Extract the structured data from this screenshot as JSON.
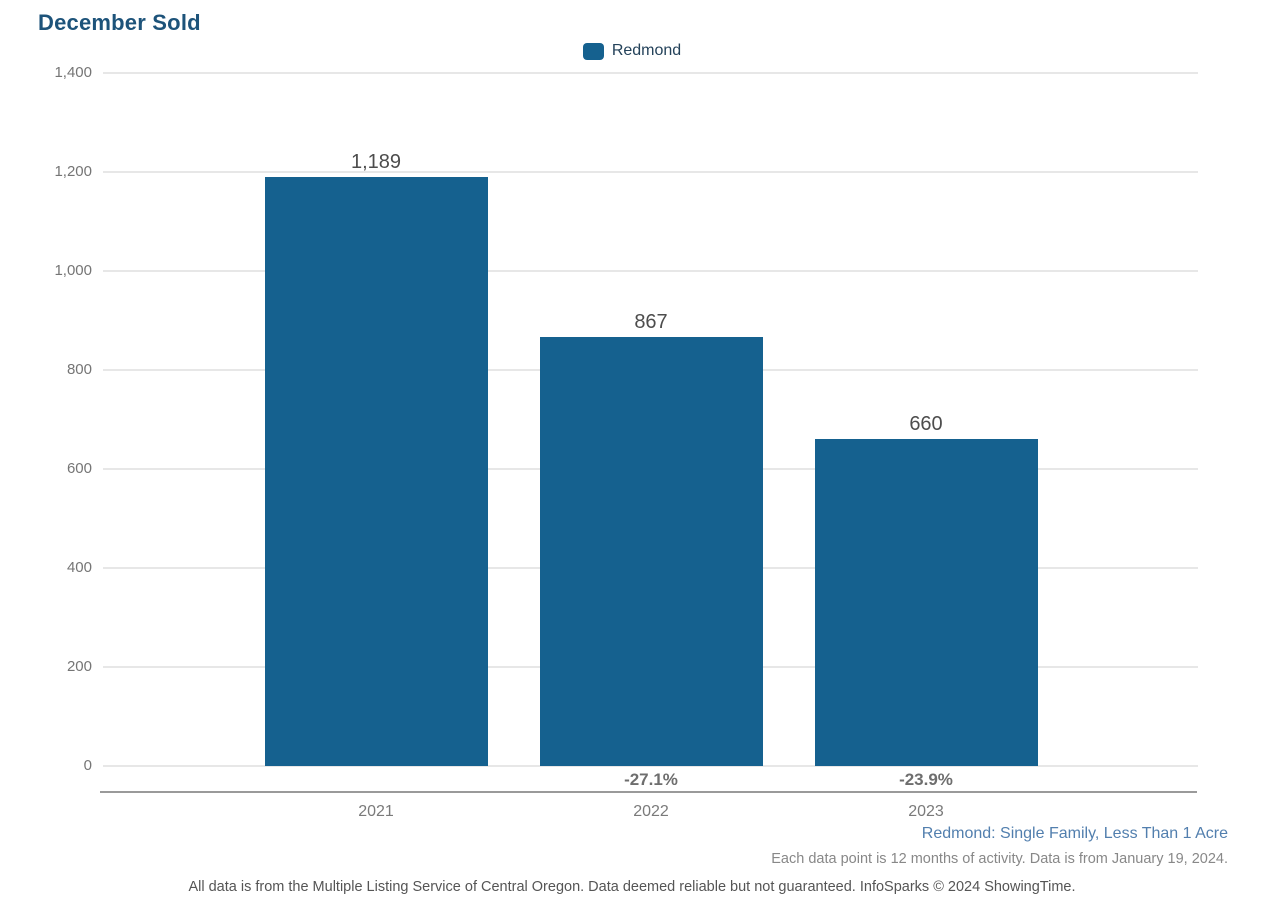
{
  "title": "December Sold",
  "legend": {
    "label": "Redmond"
  },
  "chart_data": {
    "type": "bar",
    "title": "December Sold",
    "categories": [
      "2021",
      "2022",
      "2023"
    ],
    "series": [
      {
        "name": "Redmond",
        "values": [
          1189,
          867,
          660
        ]
      }
    ],
    "value_labels": [
      "1,189",
      "867",
      "660"
    ],
    "change_labels": [
      "",
      "-27.1%",
      "-23.9%"
    ],
    "ylabel": "",
    "xlabel": "",
    "ylim": [
      0,
      1400
    ],
    "ytick_step": 200,
    "ytick_labels": [
      "1,400",
      "1,200",
      "1,000",
      "800",
      "600",
      "400",
      "200",
      "0"
    ],
    "grid": true,
    "legend_position": "top-center",
    "bar_color": "#15618f"
  },
  "colors": {
    "bar": "#15618f",
    "title_text": "#1d537a",
    "grid_line": "#e7e7e7",
    "axis_line": "#9a9a9a",
    "tick_text": "#757575",
    "value_label_text": "#4d4d4d",
    "change_label_text": "#6e6e6e",
    "footnote_blue": "#527fae",
    "footnote_gray": "#888888",
    "footer_text": "#555555"
  },
  "footnotes": {
    "segment": "Redmond: Single Family, Less Than 1 Acre",
    "data_period": "Each data point is 12 months of activity. Data is from January 19, 2024.",
    "disclaimer": "All data is from the Multiple Listing Service of Central Oregon. Data deemed reliable but not guaranteed. InfoSparks © 2024 ShowingTime."
  }
}
